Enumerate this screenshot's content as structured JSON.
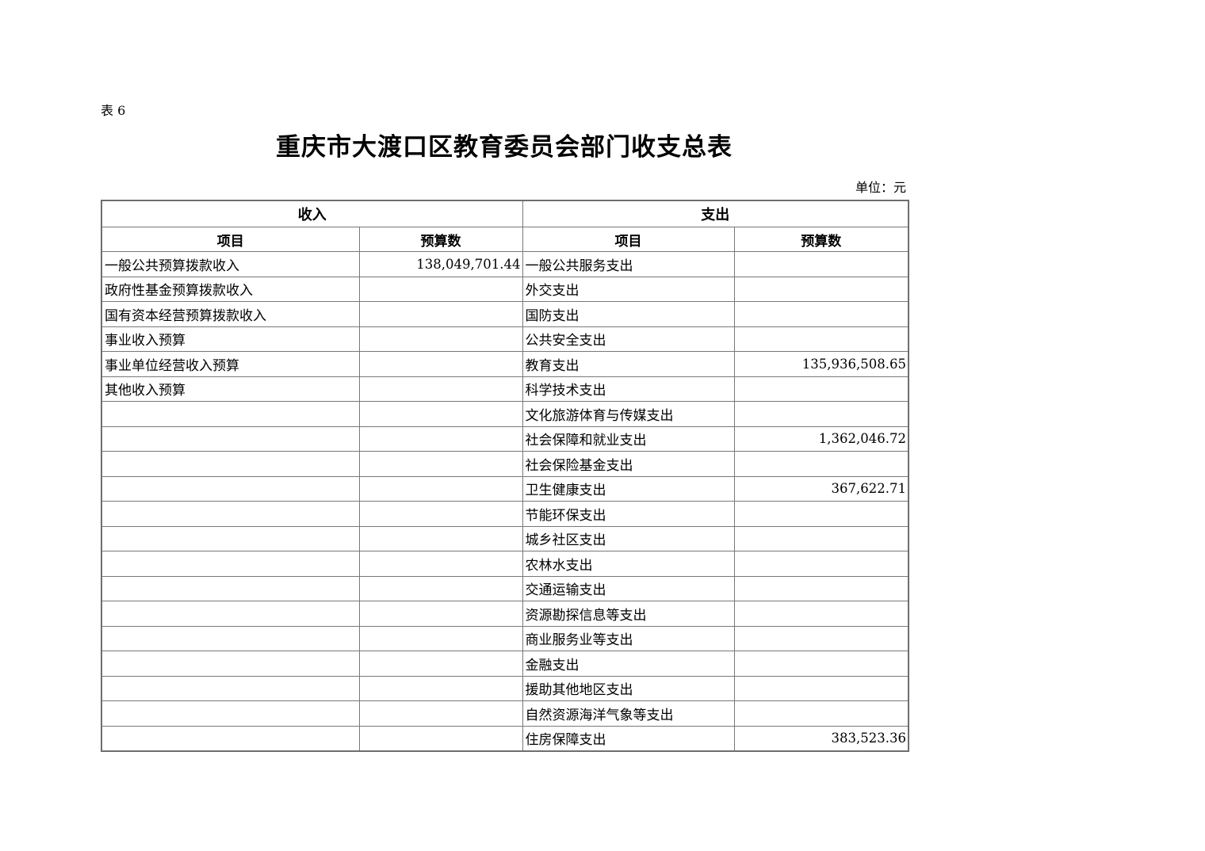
{
  "page": {
    "table_label": "表 6",
    "title": "重庆市大渡口区教育委员会部门收支总表",
    "unit_label": "单位：元"
  },
  "table": {
    "sections": {
      "income": "收入",
      "expense": "支出"
    },
    "columns": {
      "item": "项目",
      "budget": "预算数"
    },
    "rows": [
      {
        "income_item": "一般公共预算拨款收入",
        "income_budget": "138,049,701.44",
        "expense_item": "一般公共服务支出",
        "expense_budget": ""
      },
      {
        "income_item": "政府性基金预算拨款收入",
        "income_budget": "",
        "expense_item": "外交支出",
        "expense_budget": ""
      },
      {
        "income_item": "国有资本经营预算拨款收入",
        "income_budget": "",
        "expense_item": "国防支出",
        "expense_budget": ""
      },
      {
        "income_item": "事业收入预算",
        "income_budget": "",
        "expense_item": "公共安全支出",
        "expense_budget": ""
      },
      {
        "income_item": "事业单位经营收入预算",
        "income_budget": "",
        "expense_item": "教育支出",
        "expense_budget": "135,936,508.65"
      },
      {
        "income_item": "其他收入预算",
        "income_budget": "",
        "expense_item": "科学技术支出",
        "expense_budget": ""
      },
      {
        "income_item": "",
        "income_budget": "",
        "expense_item": "文化旅游体育与传媒支出",
        "expense_budget": ""
      },
      {
        "income_item": "",
        "income_budget": "",
        "expense_item": "社会保障和就业支出",
        "expense_budget": "1,362,046.72"
      },
      {
        "income_item": "",
        "income_budget": "",
        "expense_item": "社会保险基金支出",
        "expense_budget": ""
      },
      {
        "income_item": "",
        "income_budget": "",
        "expense_item": "卫生健康支出",
        "expense_budget": "367,622.71"
      },
      {
        "income_item": "",
        "income_budget": "",
        "expense_item": "节能环保支出",
        "expense_budget": ""
      },
      {
        "income_item": "",
        "income_budget": "",
        "expense_item": "城乡社区支出",
        "expense_budget": ""
      },
      {
        "income_item": "",
        "income_budget": "",
        "expense_item": "农林水支出",
        "expense_budget": ""
      },
      {
        "income_item": "",
        "income_budget": "",
        "expense_item": "交通运输支出",
        "expense_budget": ""
      },
      {
        "income_item": "",
        "income_budget": "",
        "expense_item": "资源勘探信息等支出",
        "expense_budget": ""
      },
      {
        "income_item": "",
        "income_budget": "",
        "expense_item": "商业服务业等支出",
        "expense_budget": ""
      },
      {
        "income_item": "",
        "income_budget": "",
        "expense_item": "金融支出",
        "expense_budget": ""
      },
      {
        "income_item": "",
        "income_budget": "",
        "expense_item": "援助其他地区支出",
        "expense_budget": ""
      },
      {
        "income_item": "",
        "income_budget": "",
        "expense_item": "自然资源海洋气象等支出",
        "expense_budget": ""
      },
      {
        "income_item": "",
        "income_budget": "",
        "expense_item": "住房保障支出",
        "expense_budget": "383,523.36"
      }
    ]
  }
}
